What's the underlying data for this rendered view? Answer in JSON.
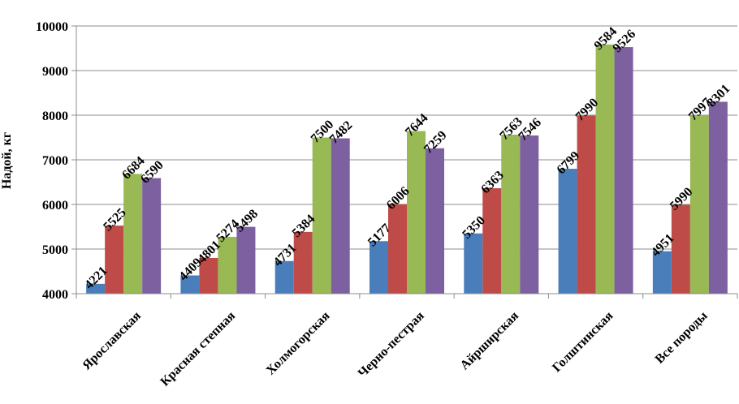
{
  "chart_data": {
    "type": "bar",
    "title": "",
    "xlabel": "",
    "ylabel": "Надой,  кг",
    "ylim": [
      4000,
      10000
    ],
    "yticks": [
      4000,
      5000,
      6000,
      7000,
      8000,
      9000,
      10000
    ],
    "grid": true,
    "legend": "none",
    "categories": [
      "Ярославская",
      "Красная  степная",
      "Холмогорская",
      "Черно-пестрая",
      "Айрширская",
      "Голштинская",
      "Все породы"
    ],
    "series": [
      {
        "color": "#4a7ebb",
        "values": [
          4221,
          4409,
          4731,
          5177,
          5350,
          6799,
          4951
        ]
      },
      {
        "color": "#be4b48",
        "values": [
          5525,
          4801,
          5384,
          6006,
          6363,
          7990,
          5990
        ]
      },
      {
        "color": "#98b954",
        "values": [
          6684,
          5274,
          7500,
          7644,
          7563,
          9584,
          7997
        ]
      },
      {
        "color": "#7d60a0",
        "values": [
          6590,
          5498,
          7482,
          7259,
          7546,
          9526,
          8301
        ]
      }
    ]
  }
}
